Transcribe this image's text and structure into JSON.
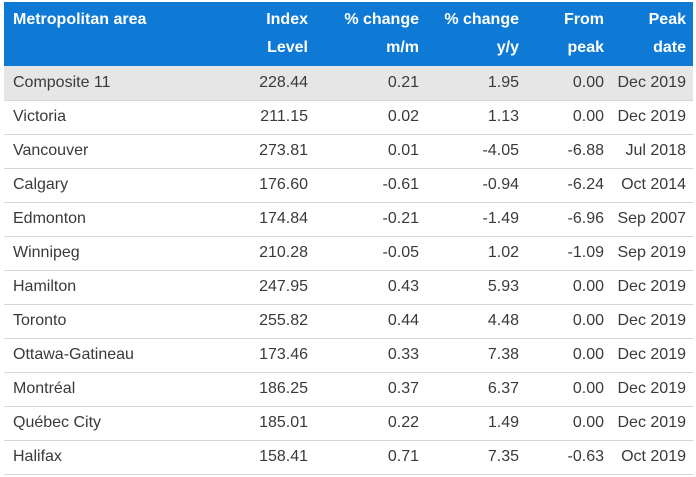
{
  "table": {
    "headers": [
      {
        "line1": "Metropolitan area",
        "line2": ""
      },
      {
        "line1": "Index",
        "line2": "Level"
      },
      {
        "line1": "% change",
        "line2": "m/m"
      },
      {
        "line1": "% change",
        "line2": "y/y"
      },
      {
        "line1": "From",
        "line2": "peak"
      },
      {
        "line1": "Peak",
        "line2": "date"
      }
    ],
    "rows": [
      {
        "area": "Composite 11",
        "index": "228.44",
        "mm": "0.21",
        "yy": "1.95",
        "from_peak": "0.00",
        "peak_date": "Dec 2019"
      },
      {
        "area": "Victoria",
        "index": "211.15",
        "mm": "0.02",
        "yy": "1.13",
        "from_peak": "0.00",
        "peak_date": "Dec 2019"
      },
      {
        "area": "Vancouver",
        "index": "273.81",
        "mm": "0.01",
        "yy": "-4.05",
        "from_peak": "-6.88",
        "peak_date": "Jul 2018"
      },
      {
        "area": "Calgary",
        "index": "176.60",
        "mm": "-0.61",
        "yy": "-0.94",
        "from_peak": "-6.24",
        "peak_date": "Oct 2014"
      },
      {
        "area": "Edmonton",
        "index": "174.84",
        "mm": "-0.21",
        "yy": "-1.49",
        "from_peak": "-6.96",
        "peak_date": "Sep 2007"
      },
      {
        "area": "Winnipeg",
        "index": "210.28",
        "mm": "-0.05",
        "yy": "1.02",
        "from_peak": "-1.09",
        "peak_date": "Sep 2019"
      },
      {
        "area": "Hamilton",
        "index": "247.95",
        "mm": "0.43",
        "yy": "5.93",
        "from_peak": "0.00",
        "peak_date": "Dec 2019"
      },
      {
        "area": "Toronto",
        "index": "255.82",
        "mm": "0.44",
        "yy": "4.48",
        "from_peak": "0.00",
        "peak_date": "Dec 2019"
      },
      {
        "area": "Ottawa-Gatineau",
        "index": "173.46",
        "mm": "0.33",
        "yy": "7.38",
        "from_peak": "0.00",
        "peak_date": "Dec 2019"
      },
      {
        "area": "Montréal",
        "index": "186.25",
        "mm": "0.37",
        "yy": "6.37",
        "from_peak": "0.00",
        "peak_date": "Dec 2019"
      },
      {
        "area": "Québec City",
        "index": "185.01",
        "mm": "0.22",
        "yy": "1.49",
        "from_peak": "0.00",
        "peak_date": "Dec 2019"
      },
      {
        "area": "Halifax",
        "index": "158.41",
        "mm": "0.71",
        "yy": "7.35",
        "from_peak": "-0.63",
        "peak_date": "Oct 2019"
      }
    ]
  },
  "colors": {
    "header_bg": "#0e7ad6",
    "header_text": "#ffffff",
    "highlight_row_bg": "#e6e6e6",
    "body_text": "#3a3a3a",
    "row_divider": "#d6d6d6"
  }
}
